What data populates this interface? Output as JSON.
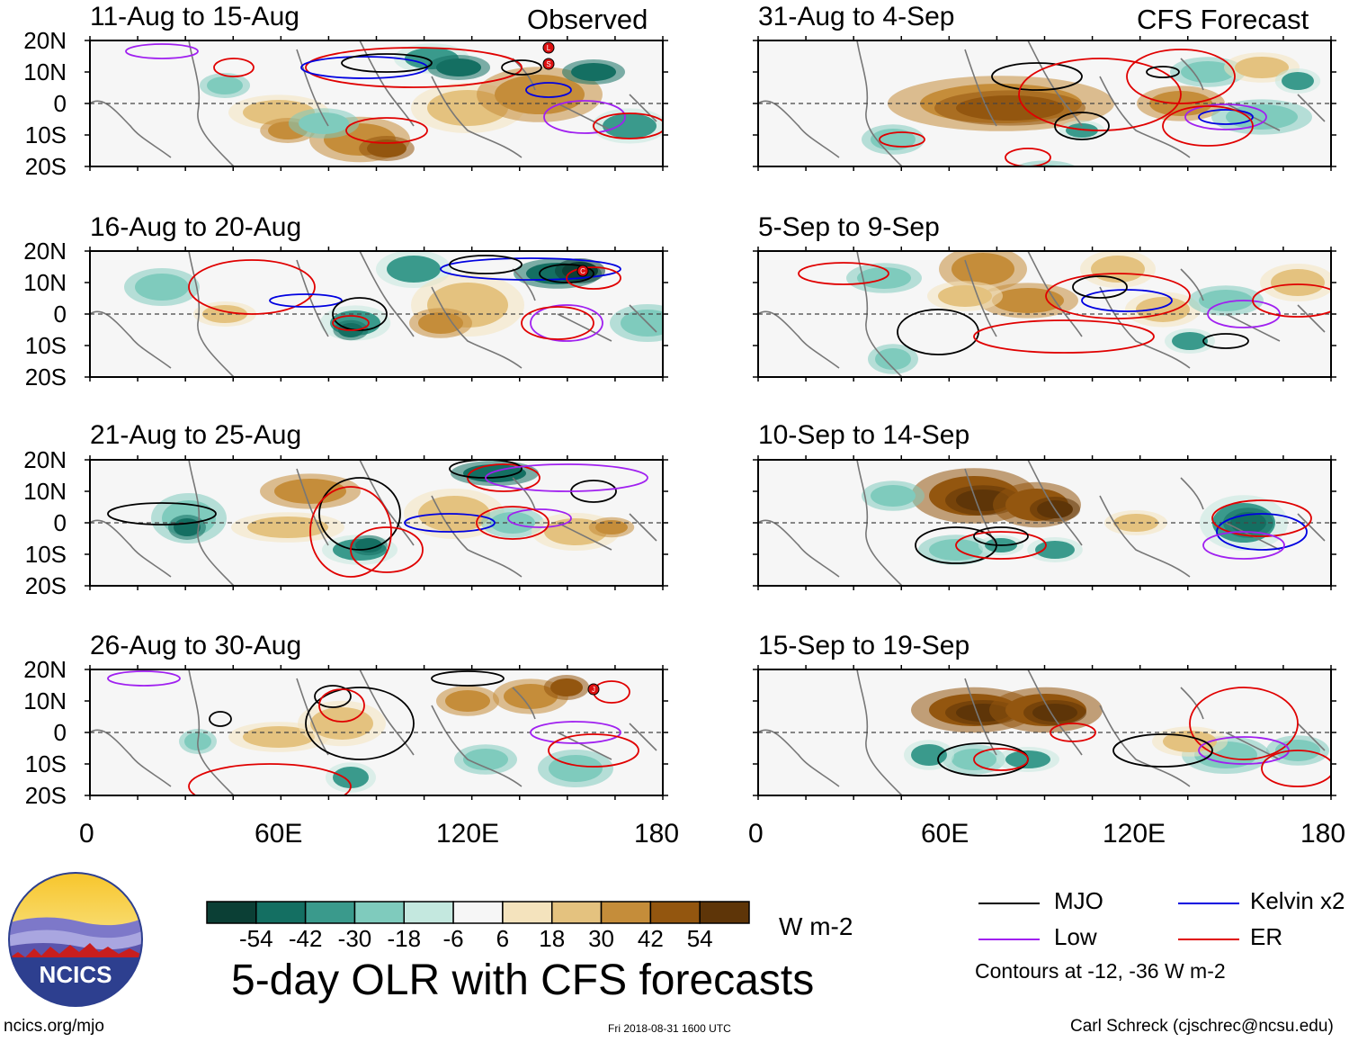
{
  "header": {
    "left_label": "Observed",
    "right_label": "CFS Forecast"
  },
  "panels": [
    {
      "id": "p1",
      "title": "11-Aug to 15-Aug",
      "column": "observed",
      "row": 0
    },
    {
      "id": "p2",
      "title": "16-Aug to 20-Aug",
      "column": "observed",
      "row": 1
    },
    {
      "id": "p3",
      "title": "21-Aug to 25-Aug",
      "column": "observed",
      "row": 2
    },
    {
      "id": "p4",
      "title": "26-Aug to 30-Aug",
      "column": "observed",
      "row": 3
    },
    {
      "id": "p5",
      "title": "31-Aug to 4-Sep",
      "column": "forecast",
      "row": 0
    },
    {
      "id": "p6",
      "title": "5-Sep to 9-Sep",
      "column": "forecast",
      "row": 1
    },
    {
      "id": "p7",
      "title": "10-Sep to 14-Sep",
      "column": "forecast",
      "row": 2
    },
    {
      "id": "p8",
      "title": "15-Sep to 19-Sep",
      "column": "forecast",
      "row": 3
    }
  ],
  "lat_labels": [
    "20N",
    "10N",
    "0",
    "10S",
    "20S"
  ],
  "lon_labels": [
    "0",
    "60E",
    "120E",
    "180"
  ],
  "colorbar": {
    "labels": [
      "-54",
      "-42",
      "-30",
      "-18",
      "-6",
      "6",
      "18",
      "30",
      "42",
      "54"
    ],
    "colors": [
      "#0b3f35",
      "#146f62",
      "#3a9a8c",
      "#7fcbbd",
      "#c4e8df",
      "#f6f6f6",
      "#f4e3bd",
      "#e4c27f",
      "#c58d3a",
      "#93560f",
      "#5e3508"
    ],
    "unit": "W m-2"
  },
  "main_title": "5-day OLR with CFS forecasts",
  "legend": {
    "items": [
      {
        "label": "MJO",
        "color": "#000000"
      },
      {
        "label": "Kelvin x2",
        "color": "#0000e0"
      },
      {
        "label": "Low",
        "color": "#a020f0"
      },
      {
        "label": "ER",
        "color": "#e00000"
      }
    ],
    "note": "Contours at -12, -36 W m-2"
  },
  "footer": {
    "left": "ncics.org/mjo",
    "center": "Fri 2018-08-31 1600 UTC",
    "right": "Carl Schreck (cjschrec@ncsu.edu)"
  },
  "logo": {
    "text": "NCICS"
  },
  "storm_markers": [
    {
      "panel": "p1",
      "letters": [
        "L",
        "S"
      ]
    },
    {
      "panel": "p2",
      "letters": [
        "C"
      ]
    },
    {
      "panel": "p4",
      "letters": [
        "J"
      ]
    }
  ]
}
